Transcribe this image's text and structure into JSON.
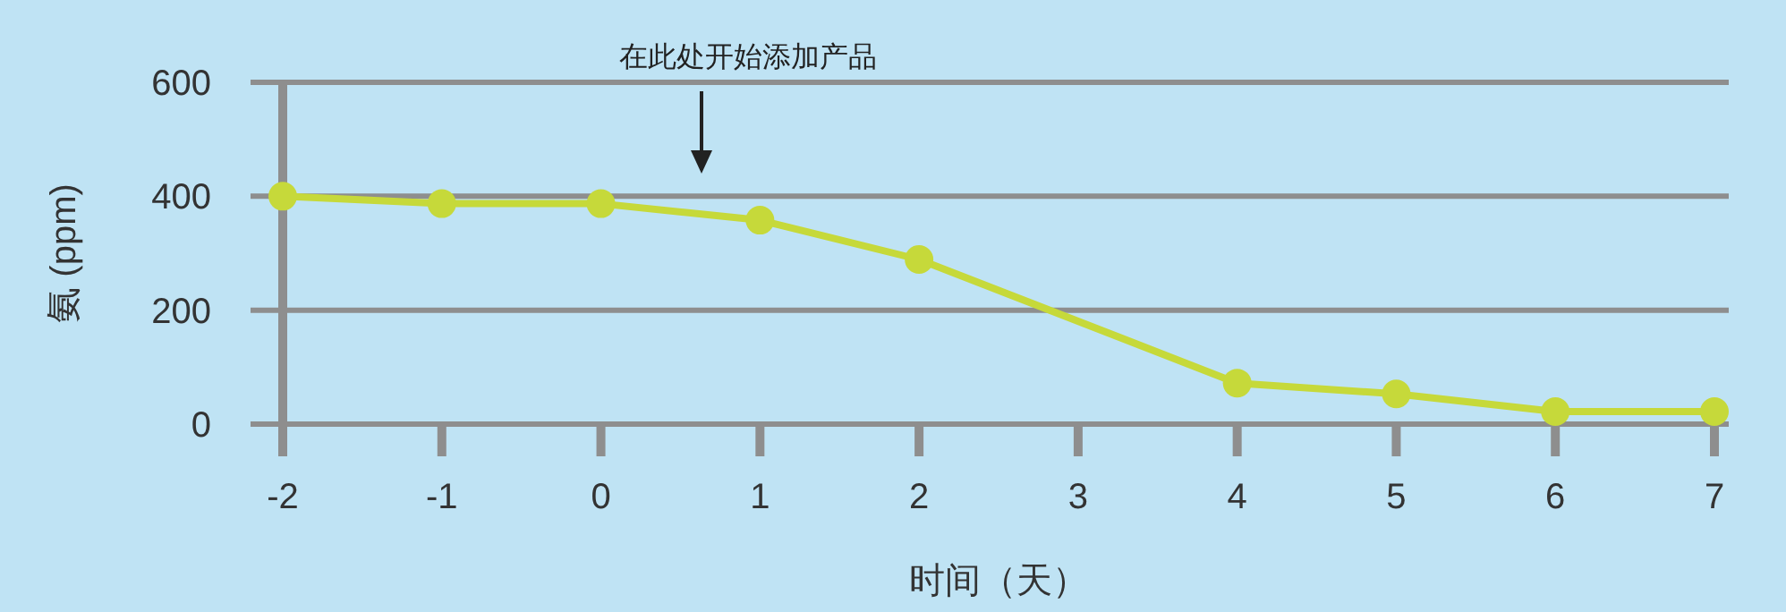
{
  "chart_data": {
    "type": "line",
    "xlabel": "时间（天）",
    "ylabel": "氨 (ppm)",
    "x": [
      -2,
      -1,
      0,
      1,
      2,
      4,
      5,
      6,
      7
    ],
    "series": [
      {
        "color": "#c6d93a",
        "values": [
          400,
          387,
          387,
          358,
          289,
          72,
          53,
          22,
          22
        ]
      }
    ],
    "xlim": [
      -2,
      7
    ],
    "xticks": [
      -2,
      -1,
      0,
      1,
      2,
      3,
      4,
      5,
      6,
      7
    ],
    "ylim": [
      0,
      600
    ],
    "yticks": [
      0,
      200,
      400,
      600
    ],
    "grid": "y",
    "marker": "circle",
    "line_style": "solid",
    "annotations": [
      "在此处开始添加产品"
    ]
  }
}
